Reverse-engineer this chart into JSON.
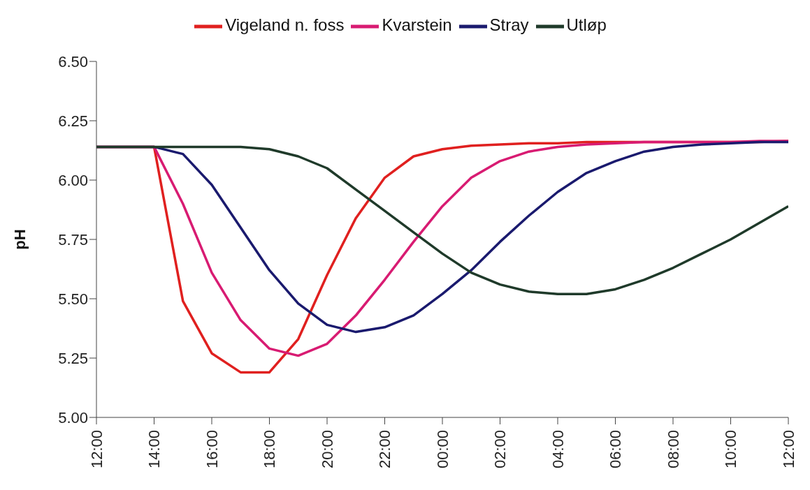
{
  "chart_data": {
    "type": "line",
    "ylabel": "pH",
    "legend": "top",
    "grid": false,
    "marker": "none",
    "line_style": "solid",
    "x": [
      "2000-01-01T12:00",
      "2000-01-01T13:00",
      "2000-01-01T14:00",
      "2000-01-01T15:00",
      "2000-01-01T16:00",
      "2000-01-01T17:00",
      "2000-01-01T18:00",
      "2000-01-01T19:00",
      "2000-01-01T20:00",
      "2000-01-01T21:00",
      "2000-01-01T22:00",
      "2000-01-01T23:00",
      "2000-01-02T00:00",
      "2000-01-02T01:00",
      "2000-01-02T02:00",
      "2000-01-02T03:00",
      "2000-01-02T04:00",
      "2000-01-02T05:00",
      "2000-01-02T06:00",
      "2000-01-02T07:00",
      "2000-01-02T08:00",
      "2000-01-02T09:00",
      "2000-01-02T10:00",
      "2000-01-02T11:00",
      "2000-01-02T12:00"
    ],
    "xlim": [
      "2000-01-01T12:00",
      "2000-01-02T12:00"
    ],
    "xticks": [
      {
        "value": "2000-01-01T12:00",
        "label": "12:00"
      },
      {
        "value": "2000-01-01T14:00",
        "label": "14:00"
      },
      {
        "value": "2000-01-01T16:00",
        "label": "16:00"
      },
      {
        "value": "2000-01-01T18:00",
        "label": "18:00"
      },
      {
        "value": "2000-01-01T20:00",
        "label": "20:00"
      },
      {
        "value": "2000-01-01T22:00",
        "label": "22:00"
      },
      {
        "value": "2000-01-02T00:00",
        "label": "00:00"
      },
      {
        "value": "2000-01-02T02:00",
        "label": "02:00"
      },
      {
        "value": "2000-01-02T04:00",
        "label": "04:00"
      },
      {
        "value": "2000-01-02T06:00",
        "label": "06:00"
      },
      {
        "value": "2000-01-02T08:00",
        "label": "08:00"
      },
      {
        "value": "2000-01-02T10:00",
        "label": "10:00"
      },
      {
        "value": "2000-01-02T12:00",
        "label": "12:00"
      }
    ],
    "ylim": [
      5,
      6.5
    ],
    "yticks": [
      {
        "value": 5,
        "label": "5.00"
      },
      {
        "value": 5.25,
        "label": "5.25"
      },
      {
        "value": 5.5,
        "label": "5.50"
      },
      {
        "value": 5.75,
        "label": "5.75"
      },
      {
        "value": 6,
        "label": "6.00"
      },
      {
        "value": 6.25,
        "label": "6.25"
      },
      {
        "value": 6.5,
        "label": "6.50"
      }
    ],
    "series": [
      {
        "name": "Vigeland n. foss",
        "color": "#e0201f",
        "values": [
          6.14,
          6.14,
          6.14,
          5.49,
          5.27,
          5.19,
          5.19,
          5.33,
          5.6,
          5.84,
          6.01,
          6.1,
          6.13,
          6.145,
          6.15,
          6.155,
          6.155,
          6.16,
          6.16,
          6.16,
          6.16,
          6.16,
          6.16,
          6.16,
          6.165
        ]
      },
      {
        "name": "Kvarstein",
        "color": "#d81b72",
        "values": [
          6.14,
          6.14,
          6.14,
          5.9,
          5.61,
          5.41,
          5.29,
          5.26,
          5.31,
          5.43,
          5.58,
          5.74,
          5.89,
          6.01,
          6.08,
          6.12,
          6.14,
          6.15,
          6.155,
          6.16,
          6.16,
          6.16,
          6.16,
          6.165,
          6.165
        ]
      },
      {
        "name": "Stray",
        "color": "#1a1a6e",
        "values": [
          6.14,
          6.14,
          6.14,
          6.11,
          5.98,
          5.8,
          5.62,
          5.48,
          5.39,
          5.36,
          5.38,
          5.43,
          5.52,
          5.62,
          5.74,
          5.85,
          5.95,
          6.03,
          6.08,
          6.12,
          6.14,
          6.15,
          6.155,
          6.16,
          6.16
        ]
      },
      {
        "name": "Utløp",
        "color": "#1f3a2a",
        "values": [
          6.14,
          6.14,
          6.14,
          6.14,
          6.14,
          6.14,
          6.13,
          6.1,
          6.05,
          5.96,
          5.87,
          5.78,
          5.69,
          5.61,
          5.56,
          5.53,
          5.52,
          5.52,
          5.54,
          5.58,
          5.63,
          5.69,
          5.75,
          5.82,
          5.89
        ]
      }
    ]
  }
}
